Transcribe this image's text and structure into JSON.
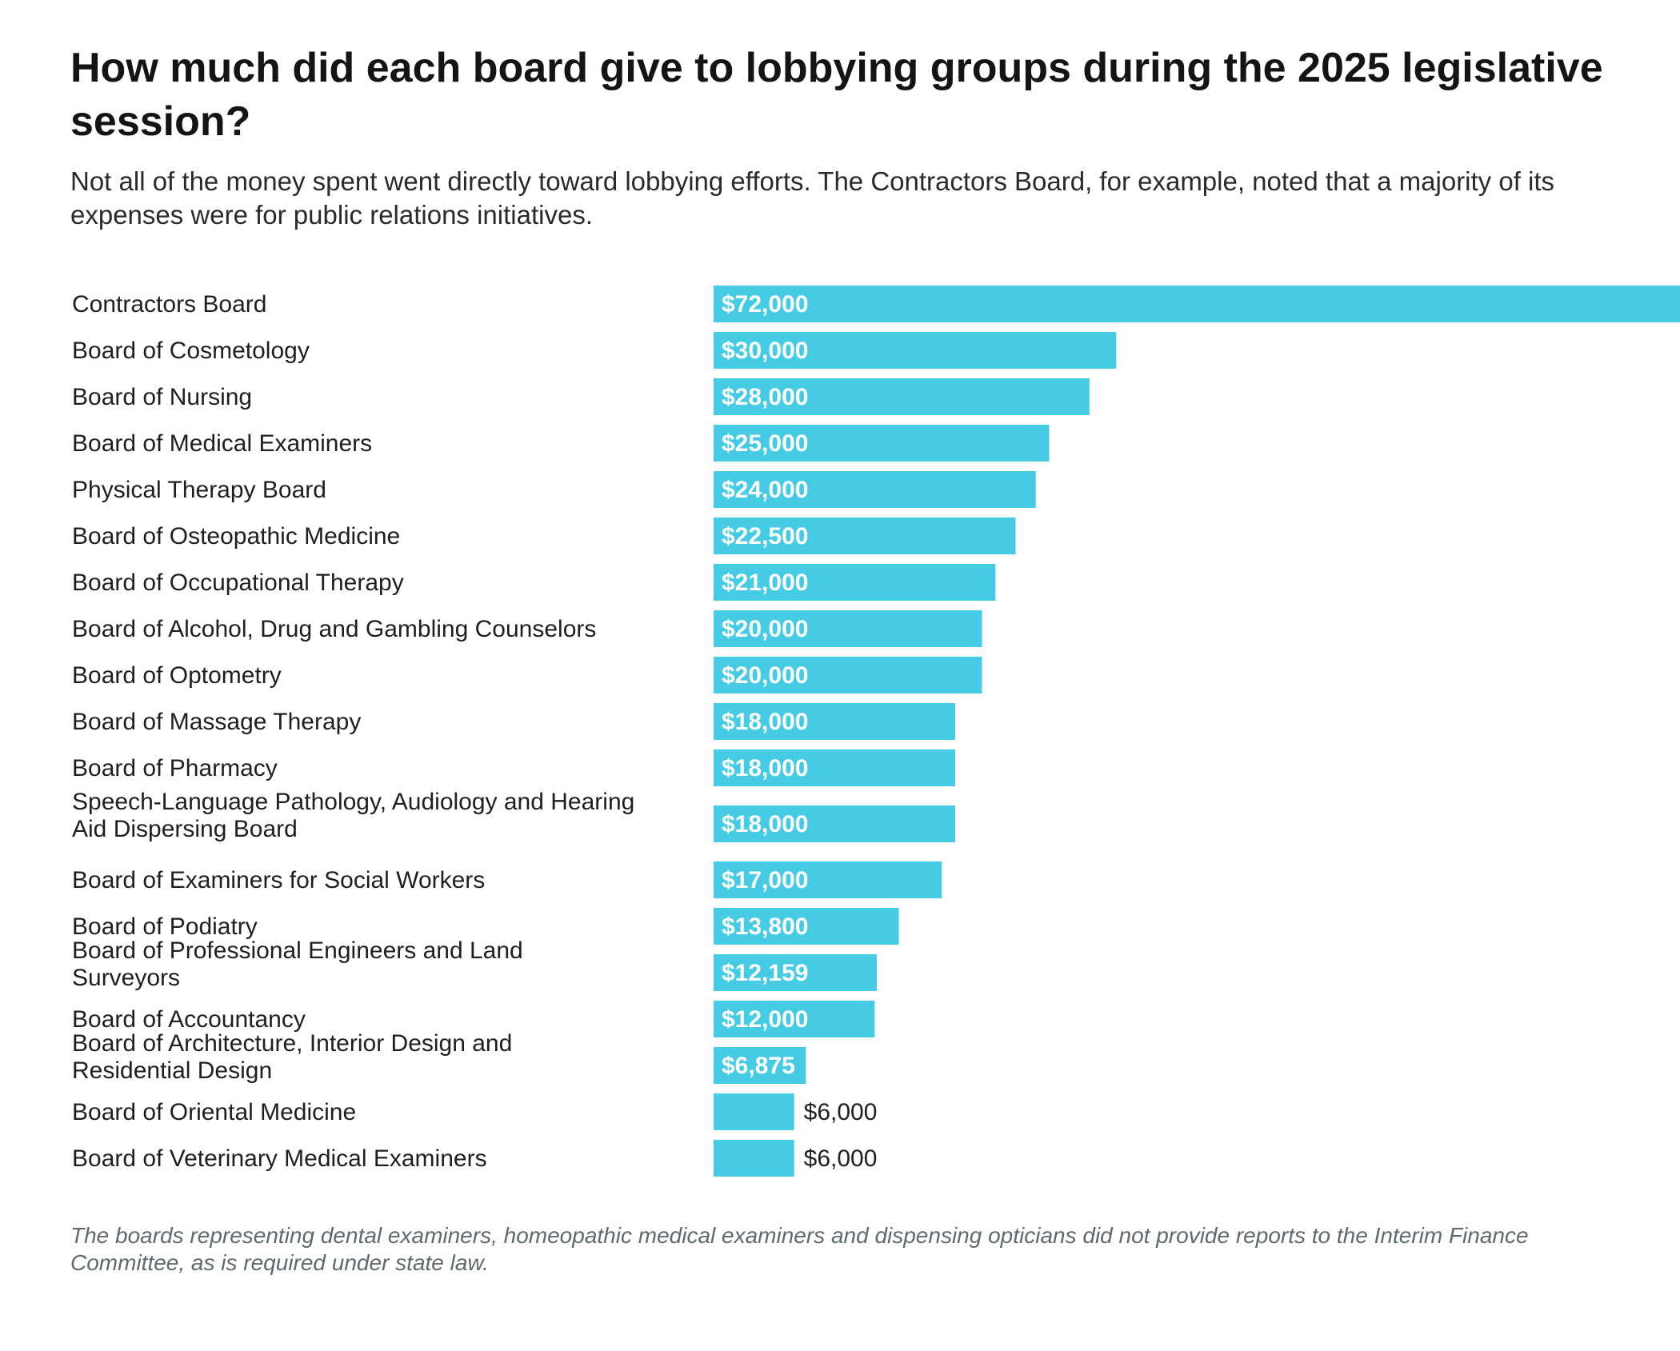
{
  "chart_data": {
    "type": "bar",
    "orientation": "horizontal",
    "title": "How much did each board give to lobbying groups during the 2025 legislative session?",
    "subtitle": "Not all of the money spent went directly toward lobbying efforts. The Contractors Board, for example, noted that a majority of its expenses were for public relations initiatives.",
    "note": "The boards representing dental examiners, homeopathic medical examiners and dispensing opticians did not provide reports to the Interim Finance Committee, as is required under state law.",
    "bar_color": "#45cbe4",
    "xlim": [
      0,
      72000
    ],
    "grid": false,
    "categories": [
      "Contractors Board",
      "Board of Cosmetology",
      "Board of Nursing",
      "Board of Medical Examiners",
      "Physical Therapy Board",
      "Board of Osteopathic Medicine",
      "Board of Occupational Therapy",
      "Board of Alcohol, Drug and Gambling Counselors",
      "Board of Optometry",
      "Board of Massage Therapy",
      "Board of Pharmacy",
      "Speech-Language Pathology, Audiology and Hearing Aid Dispersing Board",
      "Board of Examiners for Social Workers",
      "Board of Podiatry",
      "Board of Professional Engineers and Land Surveyors",
      "Board of Accountancy",
      "Board of Architecture, Interior Design and Residential Design",
      "Board of Oriental Medicine",
      "Board of Veterinary Medical Examiners"
    ],
    "values": [
      72000,
      30000,
      28000,
      25000,
      24000,
      22500,
      21000,
      20000,
      20000,
      18000,
      18000,
      18000,
      17000,
      13800,
      12159,
      12000,
      6875,
      6000,
      6000
    ],
    "value_labels": [
      "$72,000",
      "$30,000",
      "$28,000",
      "$25,000",
      "$24,000",
      "$22,500",
      "$21,000",
      "$20,000",
      "$20,000",
      "$18,000",
      "$18,000",
      "$18,000",
      "$17,000",
      "$13,800",
      "$12,159",
      "$12,000",
      "$6,875",
      "$6,000",
      "$6,000"
    ]
  }
}
